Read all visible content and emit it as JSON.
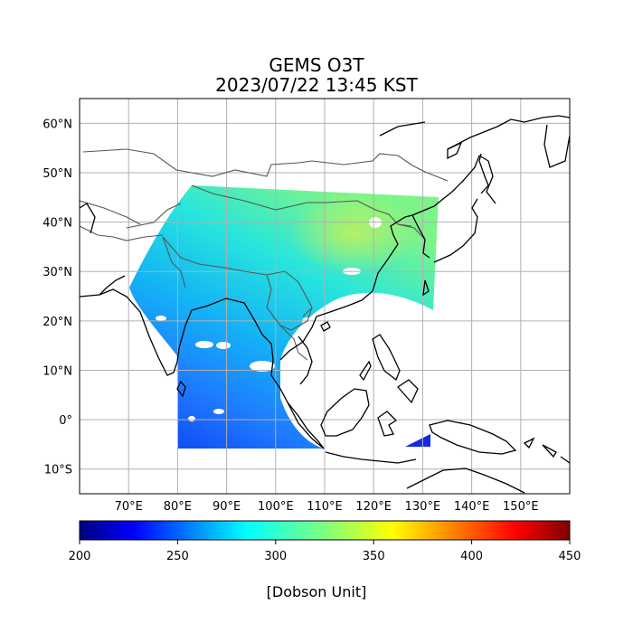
{
  "title": {
    "line1": "GEMS O3T",
    "line2": "2023/07/22 13:45 KST"
  },
  "map": {
    "lon_range": [
      60,
      160
    ],
    "lat_range": [
      -15,
      65
    ],
    "lon_ticks": [
      "70°E",
      "80°E",
      "90°E",
      "100°E",
      "110°E",
      "120°E",
      "130°E",
      "140°E",
      "150°E"
    ],
    "lat_ticks": [
      "60°N",
      "50°N",
      "40°N",
      "30°N",
      "20°N",
      "10°N",
      "0°",
      "10°S"
    ],
    "grid": true,
    "background_color": "#ffffff",
    "coastline_color": "#000000",
    "border_color": "#555555"
  },
  "colorbar": {
    "colormap": "jet",
    "min": 200,
    "max": 450,
    "ticks": [
      "200",
      "250",
      "300",
      "350",
      "400",
      "450"
    ],
    "label": "[Dobson Unit]"
  }
}
